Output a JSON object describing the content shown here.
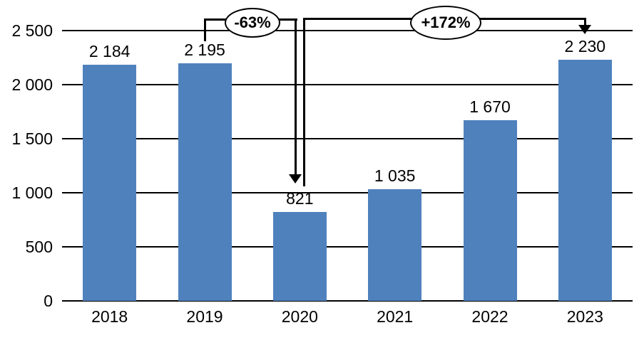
{
  "chart_data": {
    "type": "bar",
    "title": "",
    "categories": [
      "2018",
      "2019",
      "2020",
      "2021",
      "2022",
      "2023"
    ],
    "values": [
      2184,
      2195,
      821,
      1035,
      1670,
      2230
    ],
    "value_labels": [
      "2 184",
      "2 195",
      "821",
      "1 035",
      "1 670",
      "2 230"
    ],
    "y_ticks": [
      {
        "value": 0,
        "label": "0"
      },
      {
        "value": 500,
        "label": "500"
      },
      {
        "value": 1000,
        "label": "1 000"
      },
      {
        "value": 1500,
        "label": "1 500"
      },
      {
        "value": 2000,
        "label": "2 000"
      },
      {
        "value": 2500,
        "label": "2 500"
      }
    ],
    "ylim": [
      0,
      2500
    ],
    "xlabel": "",
    "ylabel": "",
    "grid": true,
    "legend": false,
    "bar_color": "#4F81BD",
    "line_color": "#000000",
    "background_color": "#FFFFFF",
    "annotations": [
      {
        "label": "-63%",
        "from_category": "2019",
        "to_category": "2020",
        "shape": "ellipse-on-bracket",
        "arrow_direction": "down"
      },
      {
        "label": "+172%",
        "from_category": "2020",
        "to_category": "2023",
        "shape": "ellipse-on-bracket",
        "arrow_direction": "down"
      }
    ]
  }
}
